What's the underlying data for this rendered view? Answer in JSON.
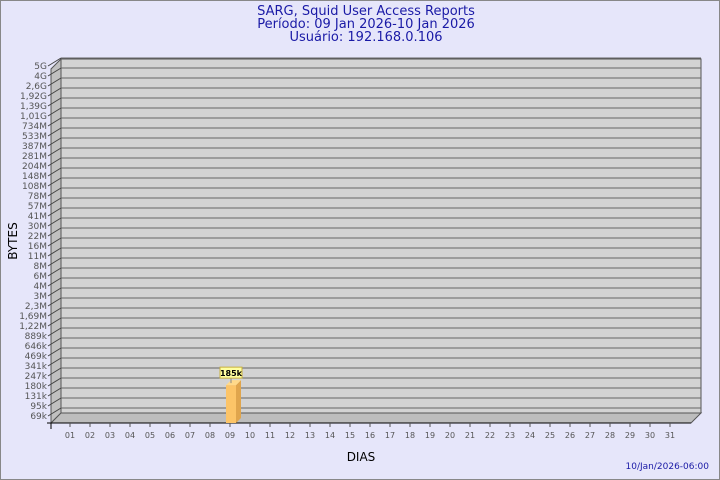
{
  "header": {
    "title": "SARG, Squid User Access Reports",
    "period": "Período: 09 Jan 2026-10 Jan 2026",
    "user": "Usuário: 192.168.0.106"
  },
  "footer": {
    "timestamp": "10/Jan/2026-06:00"
  },
  "chart_data": {
    "type": "bar",
    "xlabel": "DIAS",
    "ylabel": "BYTES",
    "yscale": "log",
    "grid": true,
    "colors": {
      "bar": "#fcc468",
      "plot": "#d3d3d3",
      "text": "#1a1aa6"
    },
    "y_ticks": [
      "5G",
      "4G",
      "2,6G",
      "1,92G",
      "1,39G",
      "1,01G",
      "734M",
      "533M",
      "387M",
      "281M",
      "204M",
      "148M",
      "108M",
      "78M",
      "57M",
      "41M",
      "30M",
      "22M",
      "16M",
      "11M",
      "8M",
      "6M",
      "4M",
      "3M",
      "2,3M",
      "1,69M",
      "1,22M",
      "889k",
      "646k",
      "469k",
      "341k",
      "247k",
      "180k",
      "131k",
      "95k",
      "69k"
    ],
    "categories": [
      "01",
      "02",
      "03",
      "04",
      "05",
      "06",
      "07",
      "08",
      "09",
      "10",
      "11",
      "12",
      "13",
      "14",
      "15",
      "16",
      "17",
      "18",
      "19",
      "20",
      "21",
      "22",
      "23",
      "24",
      "25",
      "26",
      "27",
      "28",
      "29",
      "30",
      "31"
    ],
    "bars": [
      {
        "category": "09",
        "value": 185000,
        "label": "185k"
      }
    ]
  }
}
